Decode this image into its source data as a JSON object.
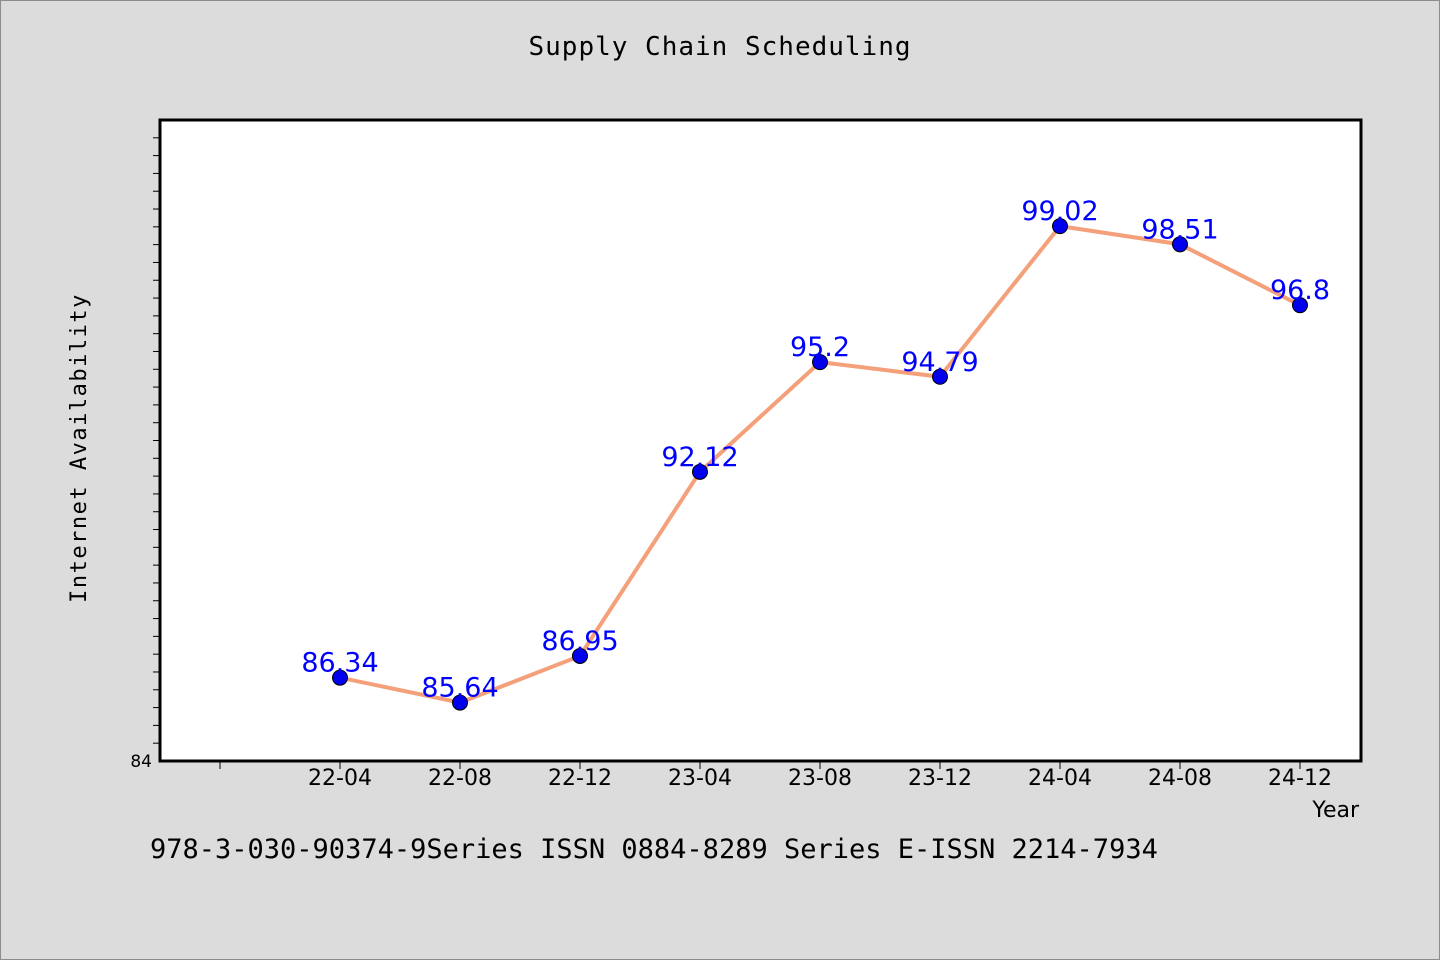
{
  "chart_data": {
    "type": "line",
    "title": "Supply Chain Scheduling",
    "xlabel": "Year",
    "ylabel": "Internet Availability",
    "categories": [
      "22-04",
      "22-08",
      "22-12",
      "23-04",
      "23-08",
      "23-12",
      "24-04",
      "24-08",
      "24-12"
    ],
    "series": [
      {
        "values": [
          86.34,
          85.64,
          86.95,
          92.12,
          95.2,
          94.79,
          99.02,
          98.51,
          96.8
        ]
      }
    ],
    "y_tick_labels": [
      "84"
    ],
    "ylim": [
      84,
      102
    ],
    "grid": false,
    "line_color": "#f4a07a",
    "marker_color": "#0000ee",
    "label_color": "#0000ff"
  },
  "footer": {
    "text": "978-3-030-90374-9Series ISSN 0884-8289 Series E-ISSN 2214-7934"
  }
}
